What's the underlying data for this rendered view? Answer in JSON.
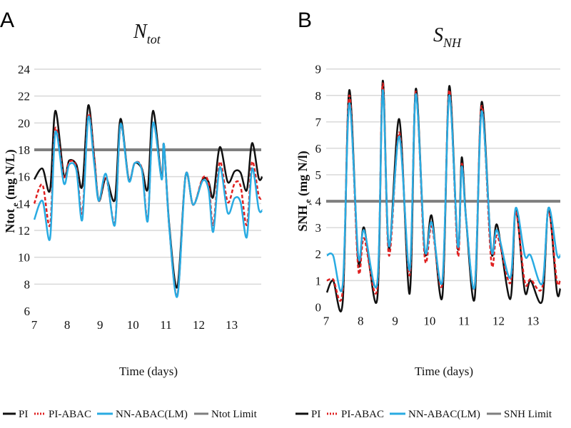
{
  "chart_data": [
    {
      "type": "line",
      "panel_letter": "A",
      "title": "N",
      "title_sub": "tot",
      "xlabel": "Time (days)",
      "ylabel": "Ntot",
      "ylabel_sub": ",e",
      "ylabel_unit": " (mg N/L)",
      "xlim": [
        7,
        13.93
      ],
      "ylim": [
        6,
        24
      ],
      "xticks": [
        7,
        8,
        9,
        10,
        11,
        12,
        13
      ],
      "yticks": [
        6,
        8,
        10,
        12,
        14,
        16,
        18,
        20,
        22,
        24
      ],
      "grid": true,
      "legend_position": "bottom",
      "x": [
        7.0,
        7.25,
        7.48,
        7.64,
        7.9,
        8.06,
        8.28,
        8.46,
        8.64,
        8.82,
        8.96,
        9.18,
        9.45,
        9.62,
        9.87,
        10.05,
        10.27,
        10.45,
        10.61,
        10.87,
        10.94,
        11.1,
        11.35,
        11.6,
        11.83,
        12.12,
        12.3,
        12.44,
        12.64,
        12.88,
        13.09,
        13.27,
        13.46,
        13.62,
        13.82,
        13.93
      ],
      "series": [
        {
          "name": "PI",
          "color": "#111111",
          "style": "solid",
          "values": [
            15.8,
            16.6,
            15.0,
            20.9,
            16.1,
            17.2,
            16.9,
            15.3,
            21.3,
            17.5,
            14.2,
            15.9,
            14.3,
            20.3,
            15.8,
            17.0,
            16.6,
            15.1,
            20.9,
            15.9,
            18.4,
            12.5,
            7.8,
            16.1,
            13.9,
            15.8,
            15.6,
            14.5,
            18.2,
            15.6,
            16.4,
            16.3,
            15.0,
            18.5,
            15.9,
            16.0
          ]
        },
        {
          "name": "PI-ABAC",
          "color": "#e02020",
          "style": "dashed",
          "values": [
            14.0,
            15.4,
            12.4,
            19.6,
            15.9,
            17.1,
            16.7,
            13.3,
            20.6,
            17.4,
            14.2,
            16.0,
            12.6,
            19.8,
            15.8,
            17.0,
            16.6,
            12.9,
            20.0,
            15.9,
            18.4,
            12.3,
            7.2,
            16.1,
            13.9,
            15.9,
            15.5,
            12.4,
            17.1,
            14.1,
            15.5,
            15.3,
            12.4,
            17.1,
            14.6,
            14.4
          ]
        },
        {
          "name": "NN-ABAC(LM)",
          "color": "#29abe2",
          "style": "solid",
          "values": [
            12.8,
            14.2,
            11.4,
            19.3,
            15.5,
            16.9,
            16.5,
            12.8,
            20.4,
            17.0,
            14.2,
            16.2,
            12.4,
            19.9,
            15.7,
            17.0,
            16.5,
            12.7,
            20.0,
            15.8,
            18.4,
            12.3,
            7.1,
            16.1,
            13.9,
            15.7,
            15.0,
            11.9,
            16.7,
            13.3,
            14.4,
            14.1,
            11.5,
            16.6,
            13.6,
            13.5
          ]
        }
      ],
      "limit": {
        "name": "Ntot Limit",
        "value": 18,
        "color": "#7f7f7f"
      }
    },
    {
      "type": "line",
      "panel_letter": "B",
      "title": "S",
      "title_sub": "NH",
      "xlabel": "Time (days)",
      "ylabel": "SNH",
      "ylabel_sub": ",e",
      "ylabel_unit": " (mg N/l)",
      "xlim": [
        7,
        13.79
      ],
      "ylim": [
        0,
        9
      ],
      "xticks": [
        7,
        8,
        9,
        10,
        11,
        12,
        13
      ],
      "yticks": [
        0,
        1,
        2,
        3,
        4,
        5,
        6,
        7,
        8,
        9
      ],
      "grid": true,
      "legend_position": "bottom",
      "x": [
        7.02,
        7.2,
        7.48,
        7.67,
        7.93,
        8.1,
        8.48,
        8.64,
        8.82,
        9.12,
        9.42,
        9.6,
        9.86,
        10.06,
        10.37,
        10.57,
        10.82,
        10.93,
        11.06,
        11.31,
        11.51,
        11.79,
        11.96,
        12.34,
        12.5,
        12.76,
        12.93,
        13.27,
        13.45,
        13.69,
        13.79
      ],
      "series": [
        {
          "name": "PI",
          "color": "#111111",
          "style": "solid",
          "values": [
            0.55,
            1.0,
            0.2,
            8.2,
            1.7,
            3.0,
            0.3,
            8.55,
            2.2,
            7.1,
            0.5,
            8.25,
            2.1,
            3.45,
            0.4,
            8.35,
            2.2,
            5.65,
            3.3,
            0.35,
            7.75,
            2.1,
            3.1,
            0.3,
            3.7,
            0.6,
            1.0,
            0.25,
            3.75,
            0.6,
            0.7
          ]
        },
        {
          "name": "PI-ABAC",
          "color": "#e02020",
          "style": "dashed",
          "values": [
            1.0,
            1.05,
            0.65,
            8.0,
            1.45,
            2.6,
            0.7,
            8.45,
            1.95,
            6.6,
            1.2,
            8.15,
            1.85,
            3.05,
            0.9,
            8.2,
            1.95,
            5.4,
            3.3,
            0.8,
            7.6,
            1.7,
            2.7,
            0.9,
            3.6,
            0.95,
            1.05,
            0.75,
            3.65,
            1.0,
            1.05
          ]
        },
        {
          "name": "NN-ABAC(LM)",
          "color": "#29abe2",
          "style": "solid",
          "values": [
            1.95,
            1.95,
            0.85,
            7.7,
            1.95,
            2.9,
            0.9,
            8.2,
            2.3,
            6.45,
            1.4,
            8.05,
            2.2,
            3.2,
            1.0,
            8.0,
            2.3,
            5.3,
            3.3,
            0.8,
            7.4,
            2.2,
            2.9,
            1.1,
            3.75,
            1.95,
            1.95,
            0.9,
            3.75,
            2.0,
            1.95
          ]
        }
      ],
      "limit": {
        "name": "SNH Limit",
        "value": 4,
        "color": "#7f7f7f"
      }
    }
  ]
}
